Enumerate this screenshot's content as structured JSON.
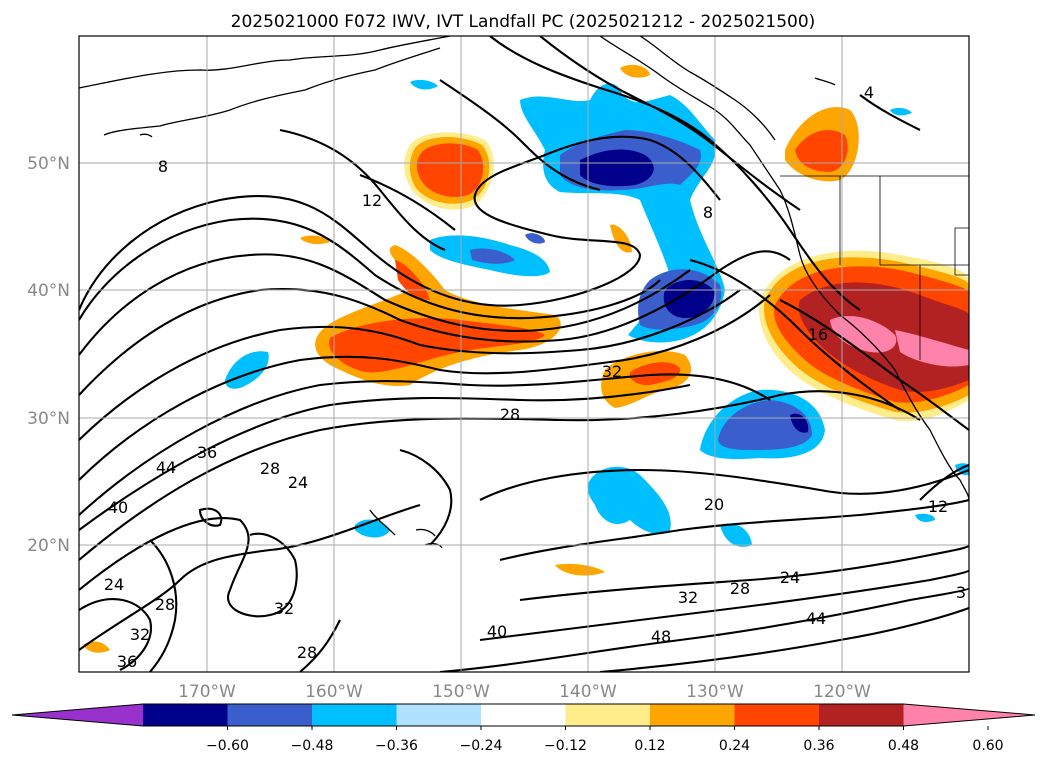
{
  "title": "2025021000 F072 IWV, IVT Landfall PC (2025021212 - 2025021500)",
  "map": {
    "lat_labels": [
      "50°N",
      "40°N",
      "30°N",
      "20°N"
    ],
    "lon_labels": [
      "170°W",
      "160°W",
      "150°W",
      "140°W",
      "130°W",
      "120°W"
    ],
    "gridlines": true,
    "extent": {
      "lon": [
        -180,
        -110
      ],
      "lat": [
        10,
        60
      ]
    }
  },
  "contour_labels": [
    "4",
    "8",
    "8",
    "12",
    "12",
    "16",
    "20",
    "24",
    "24",
    "24",
    "28",
    "28",
    "28",
    "28",
    "28",
    "32",
    "32",
    "32",
    "32",
    "36",
    "36",
    "40",
    "40",
    "44",
    "44",
    "48",
    "3"
  ],
  "colorbar": {
    "ticks": [
      "−0.60",
      "−0.48",
      "−0.36",
      "−0.24",
      "−0.12",
      "0.12",
      "0.24",
      "0.36",
      "0.48",
      "0.60"
    ],
    "colors": [
      "#9932CC",
      "#00008B",
      "#3A5FCD",
      "#00BFFF",
      "#B0E2FF",
      "#FFFFFF",
      "#FFEC8B",
      "#FFA500",
      "#FF4500",
      "#B22222",
      "#FF82AB"
    ],
    "extend": "both"
  }
}
